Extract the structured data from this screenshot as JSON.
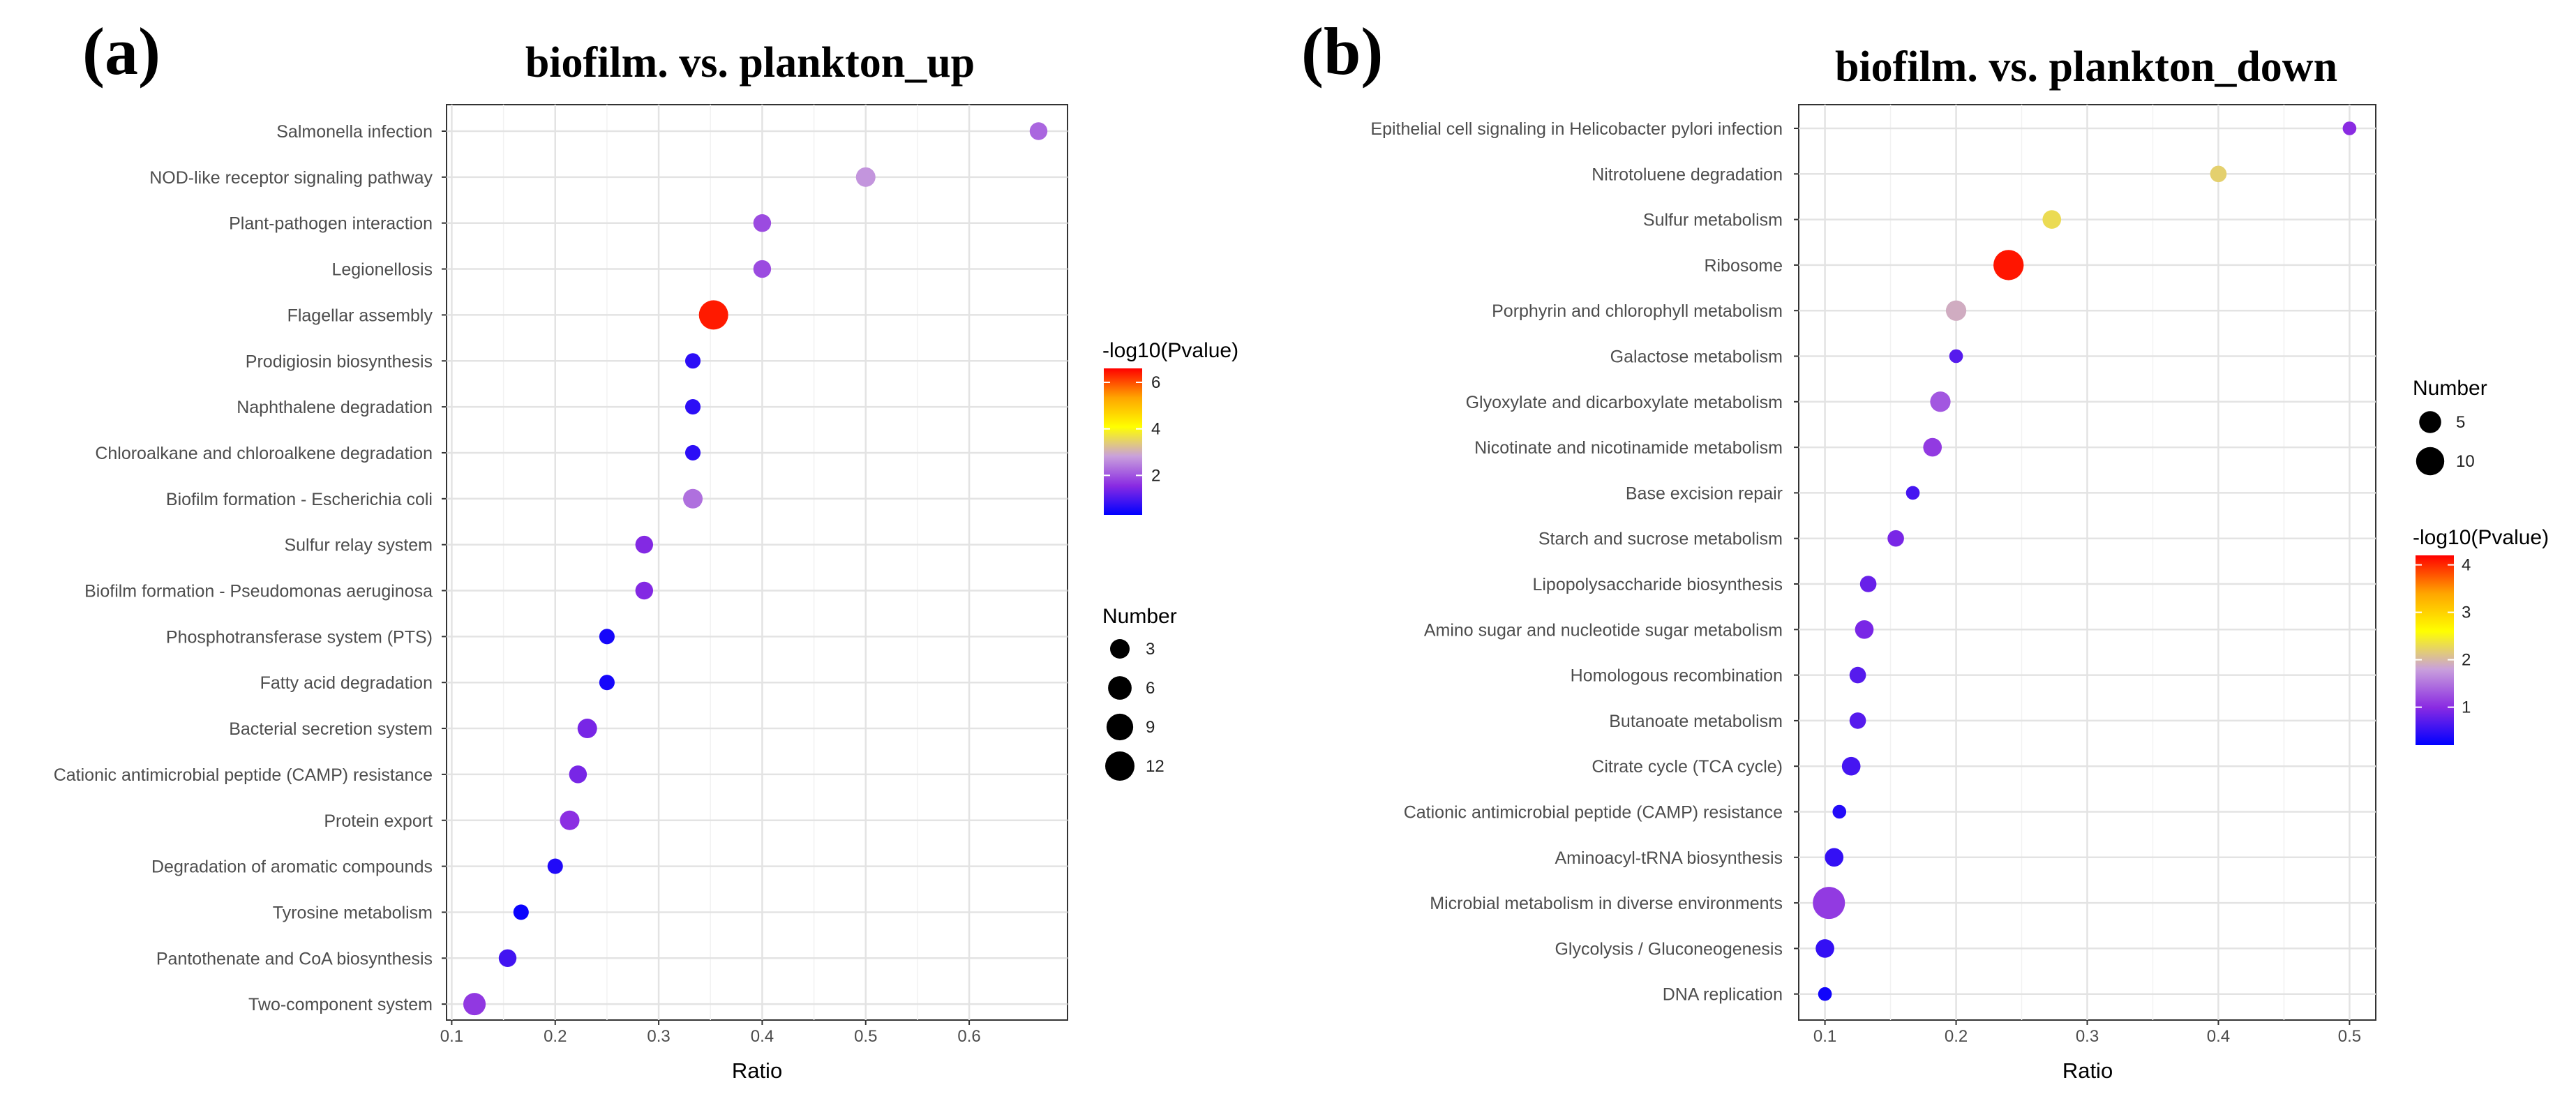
{
  "chart_data": [
    {
      "type": "scatter",
      "panel_label": "(a)",
      "title": "biofilm. vs. plankton_up",
      "xlabel": "Ratio",
      "ylabel": "",
      "xlim": [
        0.095,
        0.695
      ],
      "xticks": [
        0.1,
        0.2,
        0.3,
        0.4,
        0.5,
        0.6
      ],
      "xtick_labels": [
        "0.1",
        "0.2",
        "0.3",
        "0.4",
        "0.5",
        "0.6"
      ],
      "grid": true,
      "categories": [
        "Salmonella infection",
        "NOD-like receptor signaling pathway",
        "Plant-pathogen interaction",
        "Legionellosis",
        "Flagellar assembly",
        "Prodigiosin biosynthesis",
        "Naphthalene degradation",
        "Chloroalkane and chloroalkene degradation",
        "Biofilm formation - Escherichia coli",
        "Sulfur relay system",
        "Biofilm formation - Pseudomonas aeruginosa",
        "Phosphotransferase system (PTS)",
        "Fatty acid degradation",
        "Bacterial secretion system",
        "Cationic antimicrobial peptide (CAMP) resistance",
        "Protein export",
        "Degradation of aromatic compounds",
        "Tyrosine metabolism",
        "Pantothenate and CoA biosynthesis",
        "Two-component system"
      ],
      "ratio": [
        0.667,
        0.5,
        0.4,
        0.4,
        0.353,
        0.333,
        0.333,
        0.333,
        0.333,
        0.286,
        0.286,
        0.25,
        0.25,
        0.231,
        0.222,
        0.214,
        0.2,
        0.167,
        0.154,
        0.122
      ],
      "number": [
        2,
        3,
        2,
        2,
        12,
        1,
        1,
        1,
        3,
        2,
        2,
        1,
        1,
        3,
        2,
        3,
        1,
        1,
        2,
        5
      ],
      "neg_log10_pvalue": [
        2.2,
        2.7,
        1.9,
        1.9,
        6.4,
        0.7,
        0.7,
        0.7,
        2.3,
        1.5,
        1.5,
        0.5,
        0.5,
        1.4,
        1.4,
        1.6,
        0.6,
        0.4,
        0.9,
        1.7
      ],
      "color_legend": {
        "title": "-log10(Pvalue)",
        "min": 0.3,
        "max": 6.6,
        "ticks": [
          2,
          4,
          6
        ],
        "tick_labels": [
          "2",
          "4",
          "6"
        ]
      },
      "size_legend": {
        "title": "Number",
        "values": [
          3,
          6,
          9,
          12
        ],
        "labels": [
          "3",
          "6",
          "9",
          "12"
        ]
      },
      "color_scale": [
        "#0000ff",
        "#8a2be2",
        "#c9a0dc",
        "#ffff00",
        "#ffa500",
        "#ff0000"
      ],
      "legend_order": "color-first",
      "legend_placement": "right"
    },
    {
      "type": "scatter",
      "panel_label": "(b)",
      "title": "biofilm. vs. plankton_down",
      "xlabel": "Ratio",
      "ylabel": "",
      "xlim": [
        0.08,
        0.52
      ],
      "xticks": [
        0.1,
        0.2,
        0.3,
        0.4,
        0.5
      ],
      "xtick_labels": [
        "0.1",
        "0.2",
        "0.3",
        "0.4",
        "0.5"
      ],
      "grid": true,
      "categories": [
        "Epithelial cell signaling in Helicobacter pylori infection",
        "Nitrotoluene degradation",
        "Sulfur metabolism",
        "Ribosome",
        "Porphyrin and chlorophyll metabolism",
        "Galactose metabolism",
        "Glyoxylate and dicarboxylate metabolism",
        "Nicotinate and nicotinamide metabolism",
        "Base excision repair",
        "Starch and sucrose metabolism",
        "Lipopolysaccharide biosynthesis",
        "Amino sugar and nucleotide sugar metabolism",
        "Homologous recombination",
        "Butanoate metabolism",
        "Citrate cycle (TCA cycle)",
        "Cationic antimicrobial peptide (CAMP) resistance",
        "Aminoacyl-tRNA biosynthesis",
        "Microbial metabolism in diverse environments",
        "Glycolysis / Gluconeogenesis",
        "DNA replication"
      ],
      "ratio": [
        0.5,
        0.4,
        0.273,
        0.24,
        0.2,
        0.2,
        0.188,
        0.182,
        0.167,
        0.154,
        0.133,
        0.13,
        0.125,
        0.125,
        0.12,
        0.111,
        0.107,
        0.103,
        0.1,
        0.1
      ],
      "number": [
        1,
        2,
        3,
        12,
        4,
        1,
        4,
        3,
        1,
        2,
        2,
        3,
        2,
        2,
        3,
        1,
        3,
        14,
        3,
        1
      ],
      "neg_log10_pvalue": [
        1.0,
        2.2,
        2.3,
        4.1,
        1.9,
        0.7,
        1.3,
        1.1,
        0.6,
        0.9,
        0.8,
        0.9,
        0.7,
        0.7,
        0.6,
        0.4,
        0.5,
        1.1,
        0.5,
        0.3
      ],
      "color_legend": {
        "title": "-log10(Pvalue)",
        "min": 0.2,
        "max": 4.2,
        "ticks": [
          1,
          2,
          3,
          4
        ],
        "tick_labels": [
          "1",
          "2",
          "3",
          "4"
        ]
      },
      "size_legend": {
        "title": "Number",
        "values": [
          5,
          10
        ],
        "labels": [
          "5",
          "10"
        ]
      },
      "color_scale": [
        "#0000ff",
        "#8a2be2",
        "#c9a0dc",
        "#ffff00",
        "#ffa500",
        "#ff0000"
      ],
      "legend_order": "size-first",
      "legend_placement": "right"
    }
  ]
}
